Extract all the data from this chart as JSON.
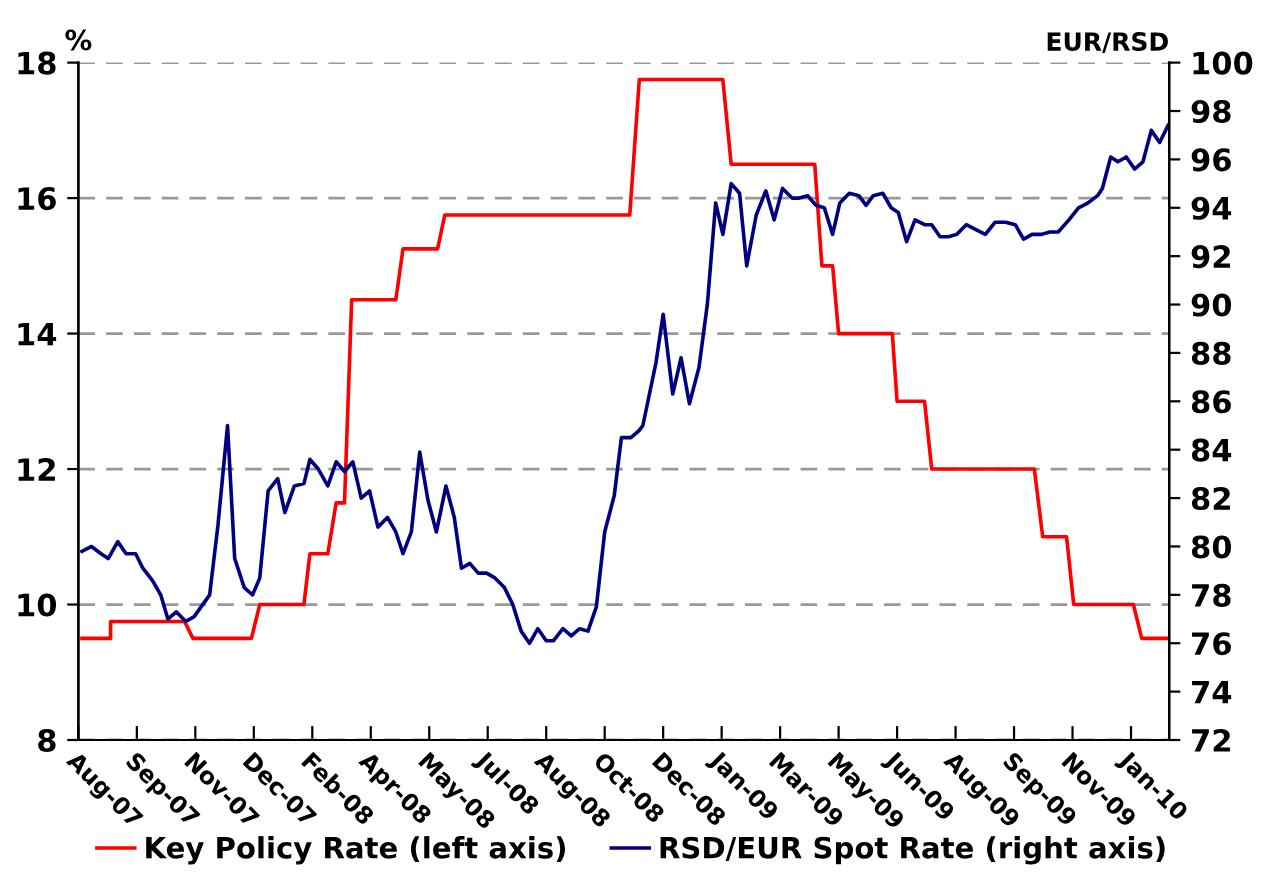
{
  "chart_data": {
    "type": "line",
    "ylabel": "%",
    "y2label": "EUR/RSD",
    "xlim": [
      "2007-08-04",
      "2010-02-03"
    ],
    "xticks": [
      {
        "value": "2007-08-04",
        "label": "Aug-07"
      },
      {
        "value": "2007-09-22",
        "label": "Sep-07"
      },
      {
        "value": "2007-11-10",
        "label": "Nov-07"
      },
      {
        "value": "2007-12-29",
        "label": "Dec-07"
      },
      {
        "value": "2008-02-16",
        "label": "Feb-08"
      },
      {
        "value": "2008-04-05",
        "label": "Apr-08"
      },
      {
        "value": "2008-05-24",
        "label": "May-08"
      },
      {
        "value": "2008-07-12",
        "label": "Jul-08"
      },
      {
        "value": "2008-08-30",
        "label": "Aug-08"
      },
      {
        "value": "2008-10-18",
        "label": "Oct-08"
      },
      {
        "value": "2008-12-06",
        "label": "Dec-08"
      },
      {
        "value": "2009-01-24",
        "label": "Jan-09"
      },
      {
        "value": "2009-03-14",
        "label": "Mar-09"
      },
      {
        "value": "2009-05-02",
        "label": "May-09"
      },
      {
        "value": "2009-06-20",
        "label": "Jun-09"
      },
      {
        "value": "2009-08-08",
        "label": "Aug-09"
      },
      {
        "value": "2009-09-26",
        "label": "Sep-09"
      },
      {
        "value": "2009-11-14",
        "label": "Nov-09"
      },
      {
        "value": "2010-01-02",
        "label": "Jan-10"
      }
    ],
    "ylim": [
      8,
      18
    ],
    "yticks": [
      8,
      10,
      12,
      14,
      16,
      18
    ],
    "y2lim": [
      72,
      100
    ],
    "y2ticks": [
      72,
      74,
      76,
      78,
      80,
      82,
      84,
      86,
      88,
      90,
      92,
      94,
      96,
      98,
      100
    ],
    "grid": "y",
    "legend": "bottom",
    "line_style": "solid",
    "series": [
      {
        "name": "Key Policy Rate (left axis)",
        "color": "#ff0000",
        "axis": "y",
        "x": [
          "2007-08-07",
          "2007-08-31",
          "2007-08-31",
          "2007-11-01",
          "2007-11-08",
          "2007-12-27",
          "2008-01-03",
          "2008-02-09",
          "2008-02-14",
          "2008-02-29",
          "2008-03-07",
          "2008-03-14",
          "2008-03-20",
          "2008-04-26",
          "2008-05-02",
          "2008-05-31",
          "2008-06-06",
          "2008-11-08",
          "2008-11-16",
          "2009-01-25",
          "2009-02-01",
          "2009-04-12",
          "2009-04-18",
          "2009-04-27",
          "2009-05-02",
          "2009-06-16",
          "2009-06-20",
          "2009-07-13",
          "2009-07-19",
          "2009-10-13",
          "2009-10-20",
          "2009-11-09",
          "2009-11-15",
          "2010-01-04",
          "2010-01-11",
          "2010-02-02"
        ],
        "values": [
          9.5,
          9.5,
          9.75,
          9.75,
          9.5,
          9.5,
          10.0,
          10.0,
          10.75,
          10.75,
          11.5,
          11.5,
          14.5,
          14.5,
          15.25,
          15.25,
          15.75,
          15.75,
          17.75,
          17.75,
          16.5,
          16.5,
          15.0,
          15.0,
          14.0,
          14.0,
          13.0,
          13.0,
          12.0,
          12.0,
          11.0,
          11.0,
          10.0,
          10.0,
          9.5,
          9.5
        ]
      },
      {
        "name": "RSD/EUR Spot Rate (right axis)",
        "color": "#000080",
        "axis": "y2",
        "x": [
          "2007-08-07",
          "2007-08-15",
          "2007-08-23",
          "2007-08-29",
          "2007-09-06",
          "2007-09-13",
          "2007-09-21",
          "2007-09-27",
          "2007-10-05",
          "2007-10-12",
          "2007-10-18",
          "2007-10-25",
          "2007-11-02",
          "2007-11-09",
          "2007-11-22",
          "2007-11-29",
          "2007-12-07",
          "2007-12-13",
          "2007-12-21",
          "2007-12-28",
          "2008-01-03",
          "2008-01-10",
          "2008-01-18",
          "2008-01-24",
          "2008-02-01",
          "2008-02-09",
          "2008-02-14",
          "2008-02-21",
          "2008-02-29",
          "2008-03-07",
          "2008-03-14",
          "2008-03-21",
          "2008-03-28",
          "2008-04-04",
          "2008-04-11",
          "2008-04-19",
          "2008-04-26",
          "2008-05-02",
          "2008-05-09",
          "2008-05-16",
          "2008-05-23",
          "2008-05-30",
          "2008-06-07",
          "2008-06-14",
          "2008-06-20",
          "2008-06-27",
          "2008-07-04",
          "2008-07-11",
          "2008-07-18",
          "2008-07-26",
          "2008-08-02",
          "2008-08-09",
          "2008-08-16",
          "2008-08-23",
          "2008-08-30",
          "2008-09-05",
          "2008-09-13",
          "2008-09-20",
          "2008-09-27",
          "2008-10-04",
          "2008-10-11",
          "2008-10-18",
          "2008-10-26",
          "2008-11-01",
          "2008-11-09",
          "2008-11-16",
          "2008-11-19",
          "2008-11-30",
          "2008-12-06",
          "2008-12-14",
          "2008-12-21",
          "2008-12-28",
          "2009-01-05",
          "2009-01-12",
          "2009-01-19",
          "2009-01-25",
          "2009-02-01",
          "2009-02-08",
          "2009-02-14",
          "2009-02-22",
          "2009-03-02",
          "2009-03-09",
          "2009-03-16",
          "2009-03-24",
          "2009-03-30",
          "2009-04-06",
          "2009-04-13",
          "2009-04-20",
          "2009-04-27",
          "2009-05-03",
          "2009-05-11",
          "2009-05-19",
          "2009-05-25",
          "2009-05-31",
          "2009-06-08",
          "2009-06-15",
          "2009-06-21",
          "2009-06-28",
          "2009-07-05",
          "2009-07-13",
          "2009-07-19",
          "2009-07-26",
          "2009-08-02",
          "2009-08-09",
          "2009-08-17",
          "2009-08-25",
          "2009-09-02",
          "2009-09-10",
          "2009-09-19",
          "2009-09-27",
          "2009-10-04",
          "2009-10-11",
          "2009-10-19",
          "2009-10-26",
          "2009-11-02",
          "2009-11-11",
          "2009-11-19",
          "2009-11-27",
          "2009-12-05",
          "2009-12-09",
          "2009-12-16",
          "2009-12-22",
          "2009-12-29",
          "2010-01-05",
          "2010-01-12",
          "2010-01-19",
          "2010-01-26",
          "2010-02-02"
        ],
        "values": [
          79.8,
          80.0,
          79.7,
          79.5,
          80.2,
          79.7,
          79.7,
          79.1,
          78.6,
          78.0,
          77.0,
          77.3,
          76.9,
          77.1,
          78.0,
          80.9,
          85.0,
          79.5,
          78.3,
          78.0,
          78.7,
          82.3,
          82.8,
          81.4,
          82.5,
          82.6,
          83.6,
          83.2,
          82.5,
          83.5,
          83.1,
          83.5,
          82.0,
          82.3,
          80.8,
          81.2,
          80.6,
          79.7,
          80.6,
          83.9,
          81.9,
          80.6,
          82.5,
          81.2,
          79.1,
          79.3,
          78.9,
          78.9,
          78.7,
          78.3,
          77.6,
          76.5,
          76.0,
          76.6,
          76.1,
          76.1,
          76.6,
          76.3,
          76.6,
          76.5,
          77.5,
          80.6,
          82.1,
          84.5,
          84.5,
          84.8,
          85.0,
          87.6,
          89.6,
          86.3,
          87.8,
          85.9,
          87.4,
          90.0,
          94.2,
          92.9,
          95.0,
          94.6,
          91.6,
          93.7,
          94.7,
          93.5,
          94.8,
          94.4,
          94.4,
          94.5,
          94.1,
          94.0,
          92.9,
          94.2,
          94.6,
          94.5,
          94.1,
          94.5,
          94.6,
          94.0,
          93.8,
          92.6,
          93.5,
          93.3,
          93.3,
          92.8,
          92.8,
          92.9,
          93.3,
          93.1,
          92.9,
          93.4,
          93.4,
          93.3,
          92.7,
          92.9,
          92.9,
          93.0,
          93.0,
          93.5,
          94.0,
          94.2,
          94.5,
          94.8,
          96.1,
          95.9,
          96.1,
          95.6,
          95.9,
          97.2,
          96.7,
          97.4
        ]
      }
    ]
  }
}
